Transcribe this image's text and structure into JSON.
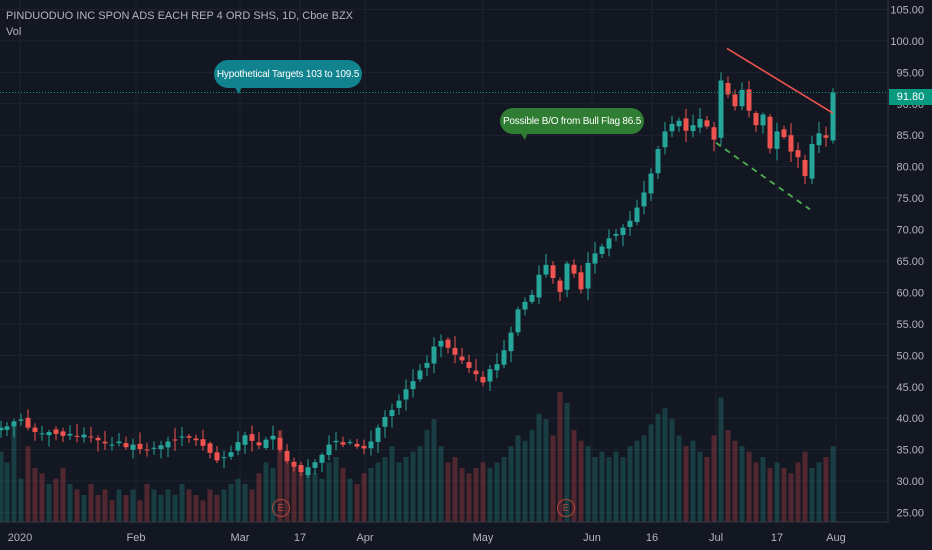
{
  "header": {
    "symbol_title": "PINDUODUO INC SPON ADS EACH REP 4 ORD SHS, 1D, Cboe BZX",
    "volume_label": "Vol"
  },
  "annotations": {
    "targets_text": "Hypothetical Targets  103 to 109.5",
    "breakout_text": "Possible B/O from Bull Flag 86.5"
  },
  "price_tag": "91.80",
  "earnings_markers": [
    "E",
    "E"
  ],
  "colors": {
    "background": "#131722",
    "up": "#26a69a",
    "down": "#ef5350",
    "current_price": "#089981",
    "targets_bubble": "#11838f",
    "breakout_bubble": "#2e7d32",
    "trendline": "#ef5350",
    "flag_line": "#4caf50"
  },
  "chart_data": {
    "type": "candlestick",
    "title": "PINDUODUO INC SPON ADS EACH REP 4 ORD SHS, 1D, Cboe BZX",
    "y_axis": {
      "ticks": [
        "25.00",
        "30.00",
        "35.00",
        "40.00",
        "45.00",
        "50.00",
        "55.00",
        "60.00",
        "65.00",
        "70.00",
        "75.00",
        "80.00",
        "85.00",
        "90.00",
        "95.00",
        "100.00",
        "105.00"
      ],
      "range": [
        23.5,
        106.5
      ]
    },
    "x_axis": {
      "labels": [
        "2020",
        "Feb",
        "Mar",
        "17",
        "Apr",
        "May",
        "Jun",
        "16",
        "Jul",
        "17",
        "Aug"
      ]
    },
    "current_price": 91.8,
    "price_path": [
      [
        1,
        38.5
      ],
      [
        7,
        38.7
      ],
      [
        14,
        39.5
      ],
      [
        21,
        39.8
      ],
      [
        28,
        38.5
      ],
      [
        35,
        37.8
      ],
      [
        42,
        37.6
      ],
      [
        49,
        37.8
      ],
      [
        56,
        37.5
      ],
      [
        63,
        37.2
      ],
      [
        70,
        37.5
      ],
      [
        77,
        37.2
      ],
      [
        84,
        37.4
      ],
      [
        91,
        37.0
      ],
      [
        98,
        36.5
      ],
      [
        105,
        36.0
      ],
      [
        112,
        35.8
      ],
      [
        119,
        36.3
      ],
      [
        126,
        35.4
      ],
      [
        133,
        35.8
      ],
      [
        140,
        35.1
      ],
      [
        147,
        34.9
      ],
      [
        154,
        35.3
      ],
      [
        161,
        35.7
      ],
      [
        168,
        36.3
      ],
      [
        175,
        36.6
      ],
      [
        182,
        37.1
      ],
      [
        189,
        36.9
      ],
      [
        196,
        36.5
      ],
      [
        203,
        35.6
      ],
      [
        210,
        34.5
      ],
      [
        217,
        33.3
      ],
      [
        224,
        33.8
      ],
      [
        231,
        34.6
      ],
      [
        238,
        36.2
      ],
      [
        245,
        37.3
      ],
      [
        252,
        36.4
      ],
      [
        259,
        35.7
      ],
      [
        266,
        36.6
      ],
      [
        273,
        37.2
      ],
      [
        280,
        35.0
      ],
      [
        287,
        33.2
      ],
      [
        294,
        32.3
      ],
      [
        301,
        31.4
      ],
      [
        308,
        32.2
      ],
      [
        315,
        33.0
      ],
      [
        322,
        34.2
      ],
      [
        329,
        35.8
      ],
      [
        336,
        36.4
      ],
      [
        343,
        35.8
      ],
      [
        350,
        36.2
      ],
      [
        357,
        35.5
      ],
      [
        364,
        35.2
      ],
      [
        371,
        36.3
      ],
      [
        378,
        38.5
      ],
      [
        385,
        40.2
      ],
      [
        392,
        41.3
      ],
      [
        399,
        42.8
      ],
      [
        406,
        44.6
      ],
      [
        413,
        45.9
      ],
      [
        420,
        47.6
      ],
      [
        427,
        48.8
      ],
      [
        434,
        51.4
      ],
      [
        441,
        52.3
      ],
      [
        448,
        51.2
      ],
      [
        455,
        50.1
      ],
      [
        462,
        49.2
      ],
      [
        469,
        48.0
      ],
      [
        476,
        47.0
      ],
      [
        483,
        45.7
      ],
      [
        490,
        47.8
      ],
      [
        497,
        48.6
      ],
      [
        504,
        50.8
      ],
      [
        511,
        53.6
      ],
      [
        518,
        57.3
      ],
      [
        525,
        58.5
      ],
      [
        532,
        59.6
      ],
      [
        539,
        62.8
      ],
      [
        546,
        64.4
      ],
      [
        553,
        62.3
      ],
      [
        560,
        60.1
      ],
      [
        567,
        64.6
      ],
      [
        574,
        63.0
      ],
      [
        581,
        60.5
      ],
      [
        588,
        64.7
      ],
      [
        595,
        66.2
      ],
      [
        602,
        67.3
      ],
      [
        609,
        68.6
      ],
      [
        616,
        69.3
      ],
      [
        623,
        70.3
      ],
      [
        630,
        71.4
      ],
      [
        637,
        73.5
      ],
      [
        644,
        75.9
      ],
      [
        651,
        78.9
      ],
      [
        658,
        82.8
      ],
      [
        665,
        85.6
      ],
      [
        672,
        86.8
      ],
      [
        679,
        87.3
      ],
      [
        686,
        85.7
      ],
      [
        693,
        86.6
      ],
      [
        700,
        87.6
      ],
      [
        707,
        86.4
      ],
      [
        714,
        84.3
      ],
      [
        721,
        93.7
      ],
      [
        728,
        91.5
      ],
      [
        735,
        89.6
      ],
      [
        742,
        92.2
      ],
      [
        749,
        88.9
      ],
      [
        756,
        86.6
      ],
      [
        763,
        88.3
      ],
      [
        770,
        82.9
      ],
      [
        777,
        85.6
      ],
      [
        784,
        84.7
      ],
      [
        791,
        82.4
      ],
      [
        798,
        81.5
      ],
      [
        805,
        78.5
      ],
      [
        812,
        83.6
      ],
      [
        819,
        85.3
      ],
      [
        826,
        84.6
      ],
      [
        833,
        91.8
      ]
    ],
    "volume_bars": [
      [
        1,
        0.65
      ],
      [
        7,
        0.55
      ],
      [
        14,
        0.9
      ],
      [
        21,
        0.4
      ],
      [
        28,
        0.7
      ],
      [
        35,
        0.5
      ],
      [
        42,
        0.45
      ],
      [
        49,
        0.35
      ],
      [
        56,
        0.4
      ],
      [
        63,
        0.5
      ],
      [
        70,
        0.35
      ],
      [
        77,
        0.3
      ],
      [
        84,
        0.25
      ],
      [
        91,
        0.35
      ],
      [
        98,
        0.25
      ],
      [
        105,
        0.3
      ],
      [
        112,
        0.2
      ],
      [
        119,
        0.3
      ],
      [
        126,
        0.25
      ],
      [
        133,
        0.3
      ],
      [
        140,
        0.2
      ],
      [
        147,
        0.35
      ],
      [
        154,
        0.3
      ],
      [
        161,
        0.25
      ],
      [
        168,
        0.3
      ],
      [
        175,
        0.25
      ],
      [
        182,
        0.35
      ],
      [
        189,
        0.3
      ],
      [
        196,
        0.25
      ],
      [
        203,
        0.2
      ],
      [
        210,
        0.3
      ],
      [
        217,
        0.25
      ],
      [
        224,
        0.3
      ],
      [
        231,
        0.35
      ],
      [
        238,
        0.4
      ],
      [
        245,
        0.35
      ],
      [
        252,
        0.3
      ],
      [
        259,
        0.45
      ],
      [
        266,
        0.55
      ],
      [
        273,
        0.5
      ],
      [
        280,
        0.85
      ],
      [
        287,
        0.6
      ],
      [
        294,
        0.55
      ],
      [
        301,
        0.45
      ],
      [
        308,
        0.5
      ],
      [
        315,
        0.45
      ],
      [
        322,
        0.4
      ],
      [
        329,
        0.55
      ],
      [
        336,
        0.6
      ],
      [
        343,
        0.5
      ],
      [
        350,
        0.4
      ],
      [
        357,
        0.35
      ],
      [
        364,
        0.45
      ],
      [
        371,
        0.5
      ],
      [
        378,
        0.55
      ],
      [
        385,
        0.6
      ],
      [
        392,
        0.7
      ],
      [
        399,
        0.55
      ],
      [
        406,
        0.6
      ],
      [
        413,
        0.65
      ],
      [
        420,
        0.7
      ],
      [
        427,
        0.85
      ],
      [
        434,
        0.95
      ],
      [
        441,
        0.7
      ],
      [
        448,
        0.55
      ],
      [
        455,
        0.6
      ],
      [
        462,
        0.5
      ],
      [
        469,
        0.45
      ],
      [
        476,
        0.5
      ],
      [
        483,
        0.55
      ],
      [
        490,
        0.5
      ],
      [
        497,
        0.55
      ],
      [
        504,
        0.6
      ],
      [
        511,
        0.7
      ],
      [
        518,
        0.8
      ],
      [
        525,
        0.75
      ],
      [
        532,
        0.85
      ],
      [
        539,
        1.0
      ],
      [
        546,
        0.95
      ],
      [
        553,
        0.8
      ],
      [
        560,
        1.2
      ],
      [
        567,
        1.1
      ],
      [
        574,
        0.85
      ],
      [
        581,
        0.75
      ],
      [
        588,
        0.7
      ],
      [
        595,
        0.6
      ],
      [
        602,
        0.65
      ],
      [
        609,
        0.6
      ],
      [
        616,
        0.65
      ],
      [
        623,
        0.6
      ],
      [
        630,
        0.7
      ],
      [
        637,
        0.75
      ],
      [
        644,
        0.8
      ],
      [
        651,
        0.9
      ],
      [
        658,
        1.0
      ],
      [
        665,
        1.05
      ],
      [
        672,
        0.95
      ],
      [
        679,
        0.8
      ],
      [
        686,
        0.7
      ],
      [
        693,
        0.75
      ],
      [
        700,
        0.65
      ],
      [
        707,
        0.6
      ],
      [
        714,
        0.8
      ],
      [
        721,
        1.15
      ],
      [
        728,
        0.85
      ],
      [
        735,
        0.75
      ],
      [
        742,
        0.7
      ],
      [
        749,
        0.65
      ],
      [
        756,
        0.55
      ],
      [
        763,
        0.6
      ],
      [
        770,
        0.5
      ],
      [
        777,
        0.55
      ],
      [
        784,
        0.5
      ],
      [
        791,
        0.45
      ],
      [
        798,
        0.55
      ],
      [
        805,
        0.65
      ],
      [
        812,
        0.5
      ],
      [
        819,
        0.55
      ],
      [
        826,
        0.6
      ],
      [
        833,
        0.7
      ]
    ],
    "current_price_line": 91.8,
    "resistance_trendline": [
      [
        727,
        98.8
      ],
      [
        833,
        88.5
      ]
    ],
    "flag_support_line": [
      [
        716,
        83.8
      ],
      [
        810,
        73.2
      ]
    ]
  }
}
